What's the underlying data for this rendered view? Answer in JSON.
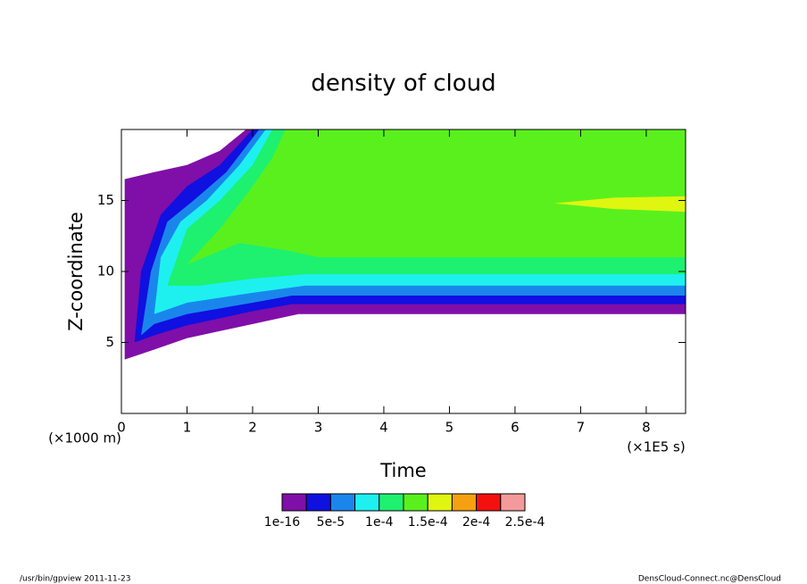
{
  "chart_data": {
    "type": "contour",
    "title": "density of cloud",
    "xlabel": "Time",
    "ylabel": "Z-coordinate",
    "x_unit": "(×1E5 s)",
    "y_unit": "(×1000 m)",
    "xlim": [
      0,
      8.6
    ],
    "ylim": [
      0,
      20
    ],
    "xticks": [
      0,
      1,
      2,
      3,
      4,
      5,
      6,
      7,
      8
    ],
    "yticks": [
      5,
      10,
      15
    ],
    "colorbar": {
      "colors": [
        "#7f0fa8",
        "#1010e0",
        "#1a86ec",
        "#1ef0f0",
        "#1ef070",
        "#5af01e",
        "#e0f510",
        "#f5a010",
        "#f51010",
        "#f59a9a"
      ],
      "levels": [
        {
          "value": 1e-16,
          "label": "1e-16"
        },
        {
          "value": 5e-05,
          "label": "5e-5"
        },
        {
          "value": 0.0001,
          "label": "1e-4"
        },
        {
          "value": 0.00015,
          "label": "1.5e-4"
        },
        {
          "value": 0.0002,
          "label": "2e-4"
        },
        {
          "value": 0.00025,
          "label": "2.5e-4"
        }
      ]
    },
    "regions": [
      {
        "band": 0,
        "x": [
          0.05,
          0.05,
          0.5,
          1.0,
          1.5,
          1.9,
          8.6,
          8.6,
          2.7,
          2.0,
          1.0,
          0.5
        ],
        "y": [
          3.8,
          16.5,
          17,
          17.5,
          18.5,
          20,
          20,
          7.0,
          7.0,
          6.3,
          5.3,
          4.5
        ]
      },
      {
        "band": 1,
        "x": [
          0.2,
          0.3,
          0.6,
          1.0,
          1.5,
          2.0,
          8.6,
          8.6,
          2.6,
          2.0,
          1.0,
          0.5
        ],
        "y": [
          5.0,
          10,
          14,
          16,
          17.5,
          20,
          20,
          7.7,
          7.7,
          7.2,
          6.2,
          5.5
        ]
      },
      {
        "band": 2,
        "x": [
          0.3,
          0.45,
          0.7,
          1.1,
          1.6,
          2.1,
          8.6,
          8.6,
          2.6,
          2.0,
          1.0,
          0.5
        ],
        "y": [
          5.5,
          10,
          13.5,
          15,
          17,
          20,
          20,
          8.3,
          8.3,
          7.8,
          7.0,
          6.3
        ]
      },
      {
        "band": 3,
        "x": [
          0.5,
          0.6,
          0.9,
          1.3,
          1.8,
          2.2,
          8.6,
          8.6,
          2.8,
          2.0,
          1.0
        ],
        "y": [
          7.0,
          11,
          13.5,
          15,
          17.5,
          20,
          20,
          9.0,
          9.0,
          8.5,
          7.8
        ]
      },
      {
        "band": 4,
        "x": [
          0.7,
          1.0,
          1.5,
          2.0,
          2.3,
          8.6,
          8.6,
          2.8,
          2.0,
          1.2
        ],
        "y": [
          9,
          13,
          15,
          17.5,
          20,
          20,
          9.8,
          9.8,
          9.5,
          9.0
        ]
      },
      {
        "band": 5,
        "x": [
          1.0,
          1.5,
          2.0,
          2.3,
          2.5,
          8.6,
          8.6,
          3.0,
          2.5,
          1.8
        ],
        "y": [
          10.5,
          13,
          16,
          18,
          20,
          20,
          11.0,
          11.0,
          11.5,
          12
        ]
      },
      {
        "band": 6,
        "x": [
          6.6,
          7.5,
          8.6,
          8.6,
          7.5
        ],
        "y": [
          14.8,
          15.2,
          15.3,
          14.2,
          14.4
        ]
      }
    ]
  },
  "footer": {
    "left": "/usr/bin/gpview   2011-11-23",
    "right": "DensCloud-Connect.nc@DensCloud"
  }
}
